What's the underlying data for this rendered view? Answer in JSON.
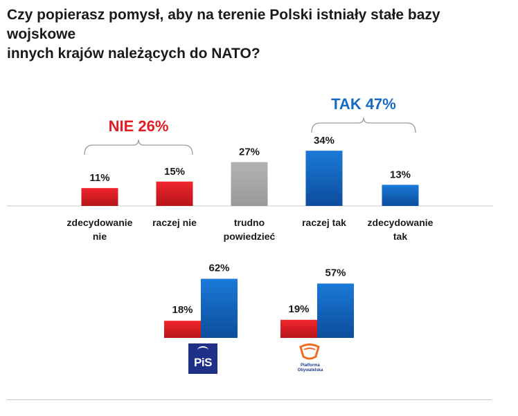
{
  "title": {
    "line1": "Czy popierasz pomysł, aby na terenie Polski istniały stałe bazy wojskowe",
    "line2": "innych krajów należących do NATO?"
  },
  "chart_data": [
    {
      "type": "bar",
      "title": "Czy popierasz pomysł, aby na terenie Polski istniały stałe bazy wojskowe innych krajów należących do NATO?",
      "categories": [
        [
          "zdecydowanie",
          "nie"
        ],
        [
          "raczej nie"
        ],
        [
          "trudno",
          "powiedzieć"
        ],
        [
          "raczej tak"
        ],
        [
          "zdecydowanie",
          "tak"
        ]
      ],
      "values": [
        11,
        15,
        27,
        34,
        13
      ],
      "value_labels": [
        "11%",
        "15%",
        "27%",
        "34%",
        "13%"
      ],
      "colors": [
        "#e31b23",
        "#e31b23",
        "#a6a6a6",
        "#1569c7",
        "#1569c7"
      ],
      "groups": [
        {
          "label": "NIE 26%",
          "color": "#e31b23",
          "spans": [
            0,
            1
          ]
        },
        {
          "label": "TAK 47%",
          "color": "#1569c7",
          "spans": [
            3,
            4
          ]
        }
      ]
    },
    {
      "type": "bar",
      "title": "PiS",
      "series": [
        {
          "name": "NIE",
          "values": [
            18
          ],
          "label": "18%",
          "color": "#e31b23"
        },
        {
          "name": "TAK",
          "values": [
            62
          ],
          "label": "62%",
          "color": "#1569c7"
        }
      ]
    },
    {
      "type": "bar",
      "title": "Platforma Obywatelska",
      "series": [
        {
          "name": "NIE",
          "values": [
            19
          ],
          "label": "19%",
          "color": "#e31b23"
        },
        {
          "name": "TAK",
          "values": [
            57
          ],
          "label": "57%",
          "color": "#1569c7"
        }
      ]
    }
  ],
  "logos": {
    "pis": {
      "text": "PiS"
    },
    "po": {
      "line1": "Platforma",
      "line2": "Obywatelska"
    }
  }
}
